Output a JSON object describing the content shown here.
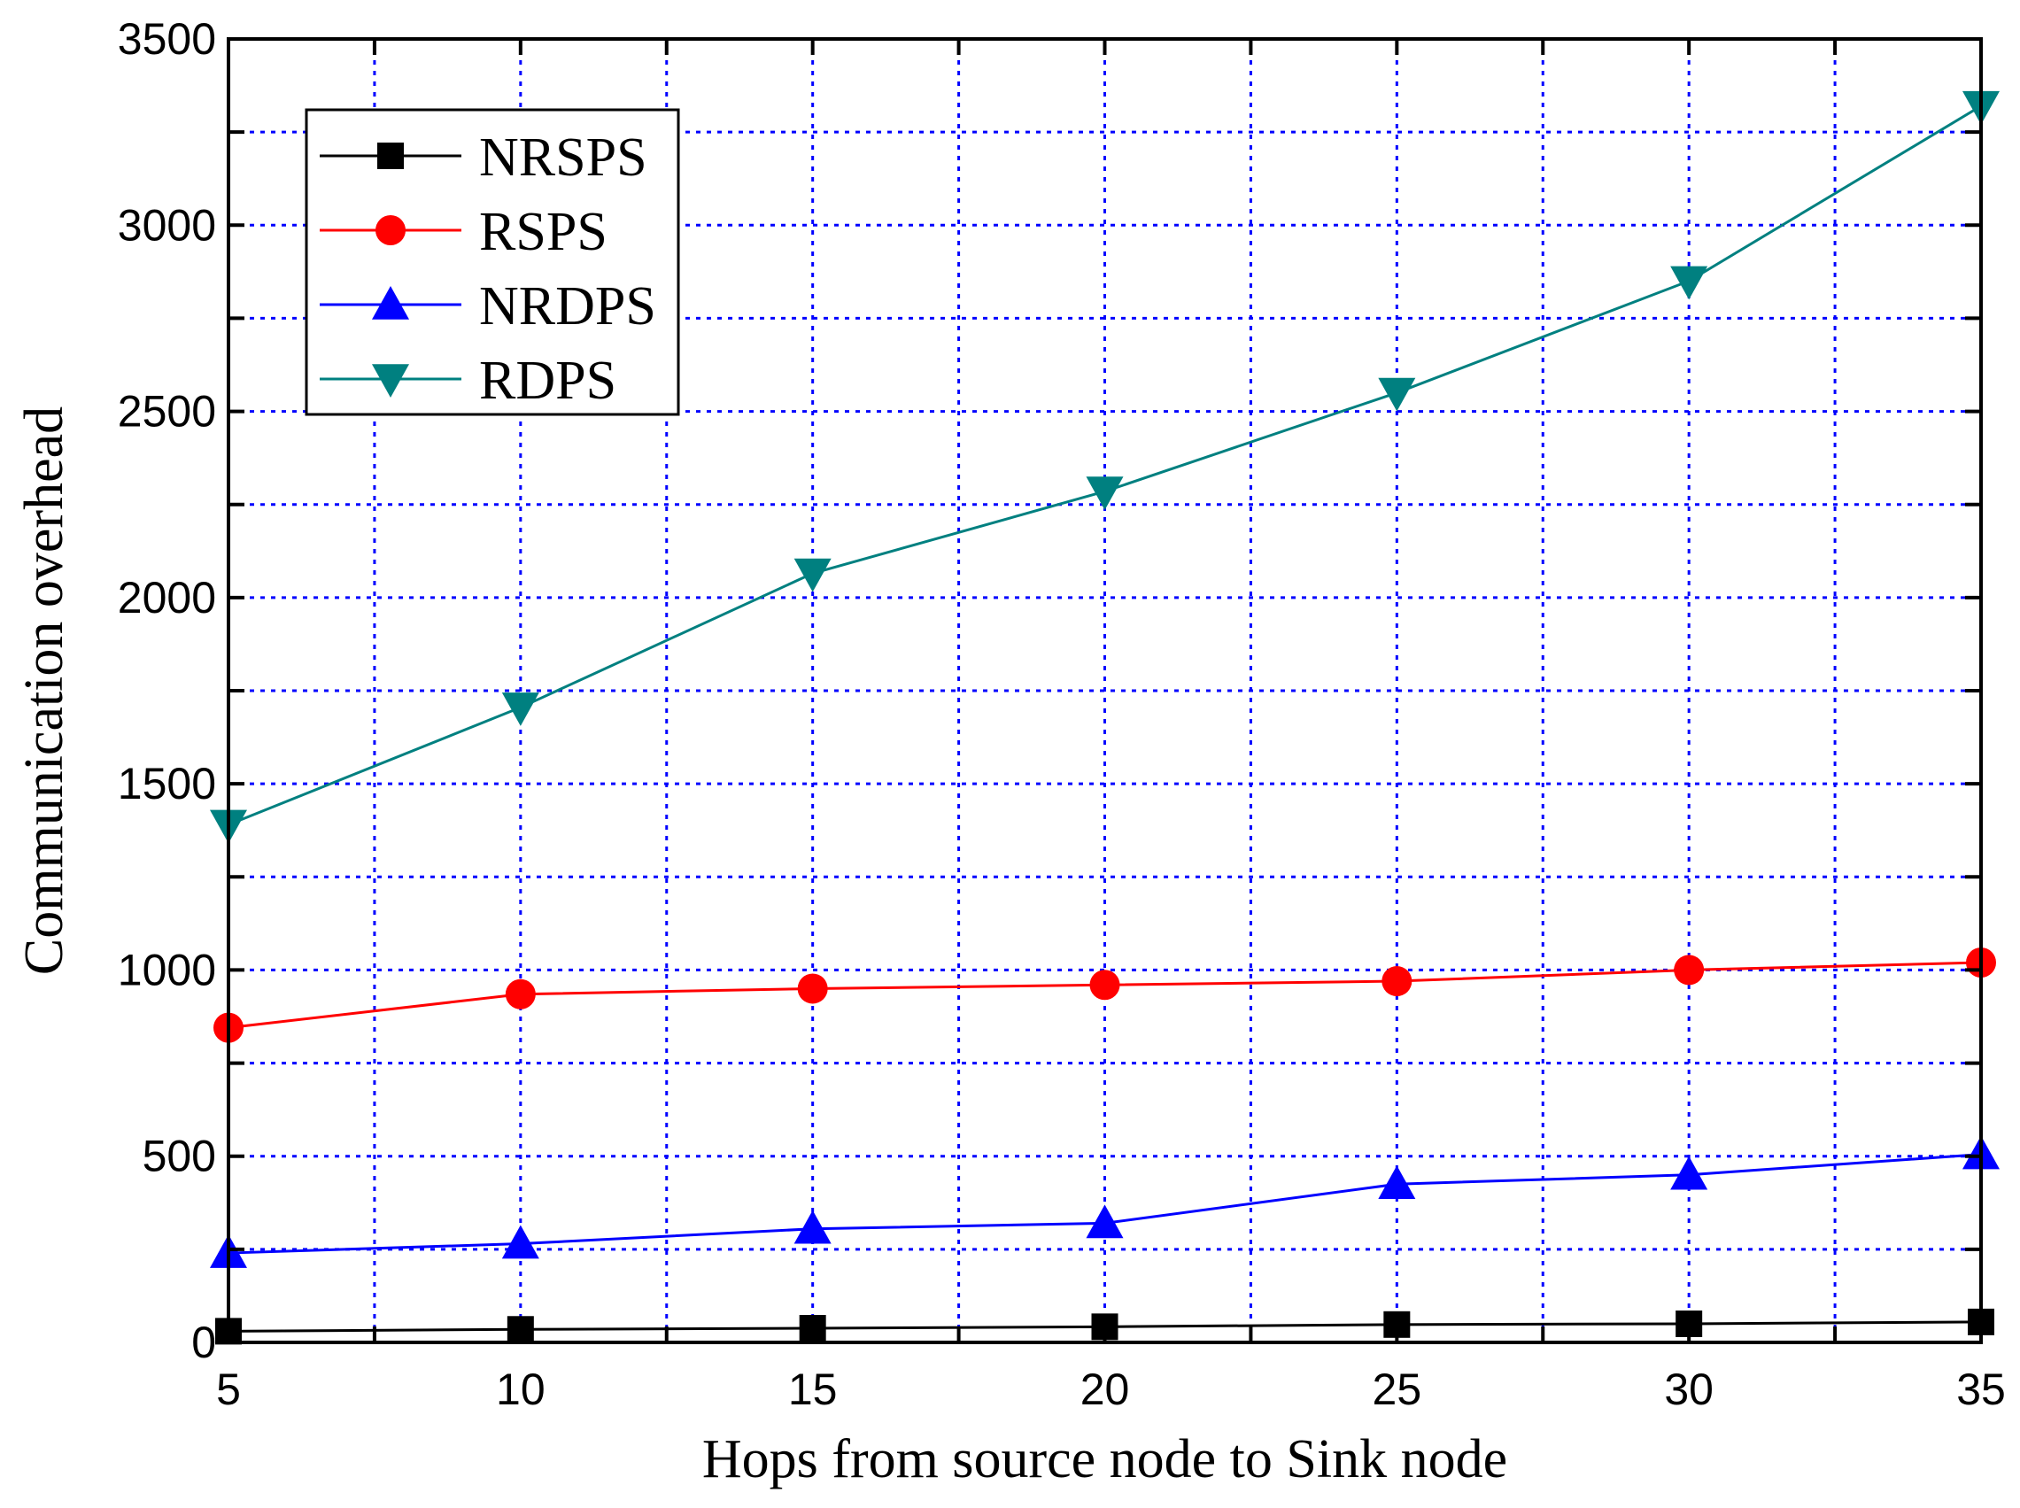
{
  "chart_data": {
    "type": "line",
    "title": "",
    "xlabel": "Hops from source node to Sink node",
    "ylabel": "Communication overhead",
    "x": [
      5,
      10,
      15,
      20,
      25,
      30,
      35
    ],
    "xlim": [
      5,
      35
    ],
    "ylim": [
      0,
      3500
    ],
    "xticks": [
      "5",
      "10",
      "15",
      "20",
      "25",
      "30",
      "35"
    ],
    "yticks": [
      "0",
      "500",
      "1000",
      "1500",
      "2000",
      "2500",
      "3000",
      "3500"
    ],
    "grid": true,
    "legend_position": "top-left",
    "series": [
      {
        "name": "NRSPS",
        "marker": "square",
        "color": "#000000",
        "values": [
          30,
          35,
          38,
          42,
          48,
          50,
          55
        ]
      },
      {
        "name": "RSPS",
        "marker": "circle",
        "color": "#ff0000",
        "values": [
          845,
          935,
          950,
          960,
          970,
          1000,
          1020
        ]
      },
      {
        "name": "NRDPS",
        "marker": "triangle-up",
        "color": "#0000ff",
        "values": [
          240,
          265,
          305,
          320,
          425,
          450,
          505
        ]
      },
      {
        "name": "RDPS",
        "marker": "triangle-down",
        "color": "#008080",
        "values": [
          1390,
          1705,
          2065,
          2285,
          2550,
          2850,
          3320
        ]
      }
    ]
  }
}
